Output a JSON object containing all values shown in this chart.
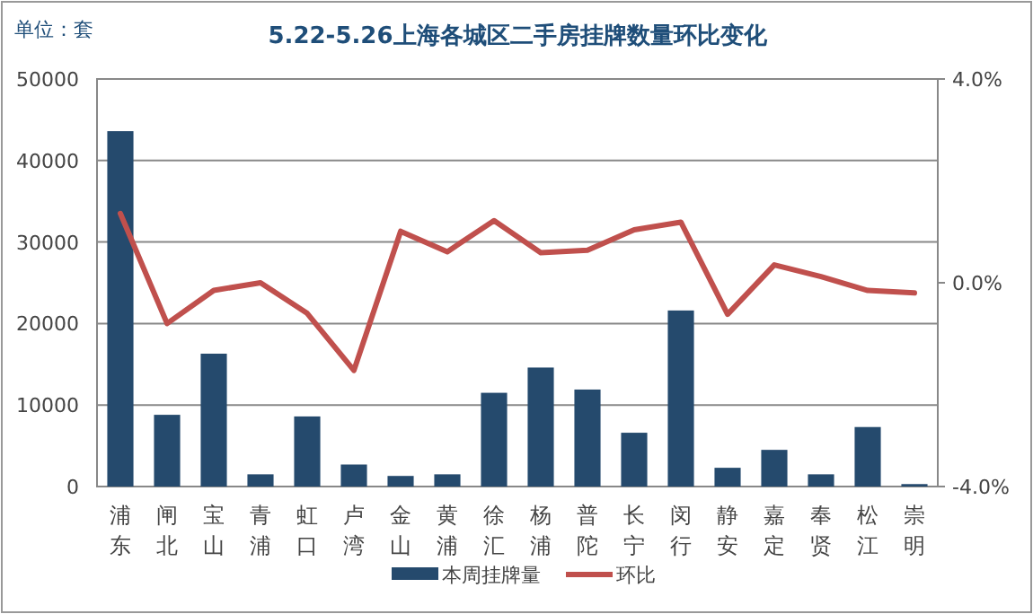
{
  "chart_data": {
    "type": "bar",
    "title": "5.22-5.26上海各城区二手房挂牌数量环比变化",
    "annotations": [
      "单位：套"
    ],
    "categories": [
      "浦东",
      "闸北",
      "宝山",
      "青浦",
      "虹口",
      "卢湾",
      "金山",
      "黄浦",
      "徐汇",
      "杨浦",
      "普陀",
      "长宁",
      "闵行",
      "静安",
      "嘉定",
      "奉贤",
      "松江",
      "崇明"
    ],
    "series": [
      {
        "name": "本周挂牌量",
        "color": "#254a6d",
        "values": [
          43600,
          8800,
          16300,
          1500,
          8600,
          2700,
          1300,
          1500,
          11500,
          14600,
          11900,
          6600,
          21600,
          2300,
          4500,
          1500,
          7300,
          300
        ]
      },
      {
        "name": "环比",
        "type": "line",
        "axis": "y2",
        "color": "#c0504d",
        "values": [
          1.36,
          -0.8,
          -0.15,
          0.0,
          -0.6,
          -1.72,
          1.01,
          0.61,
          1.22,
          0.59,
          0.64,
          1.04,
          1.19,
          -0.62,
          0.35,
          0.12,
          -0.15,
          -0.2
        ]
      }
    ],
    "ylim": [
      0,
      50000
    ],
    "yticks": [
      0,
      10000,
      20000,
      30000,
      40000,
      50000
    ],
    "y2lim": [
      -4,
      4
    ],
    "y2ticks": [
      {
        "value": -4,
        "label": "-4.0%"
      },
      {
        "value": 0,
        "label": "0.0%"
      },
      {
        "value": 4,
        "label": "4.0%"
      }
    ],
    "grid": "y",
    "legend": "bottom"
  }
}
